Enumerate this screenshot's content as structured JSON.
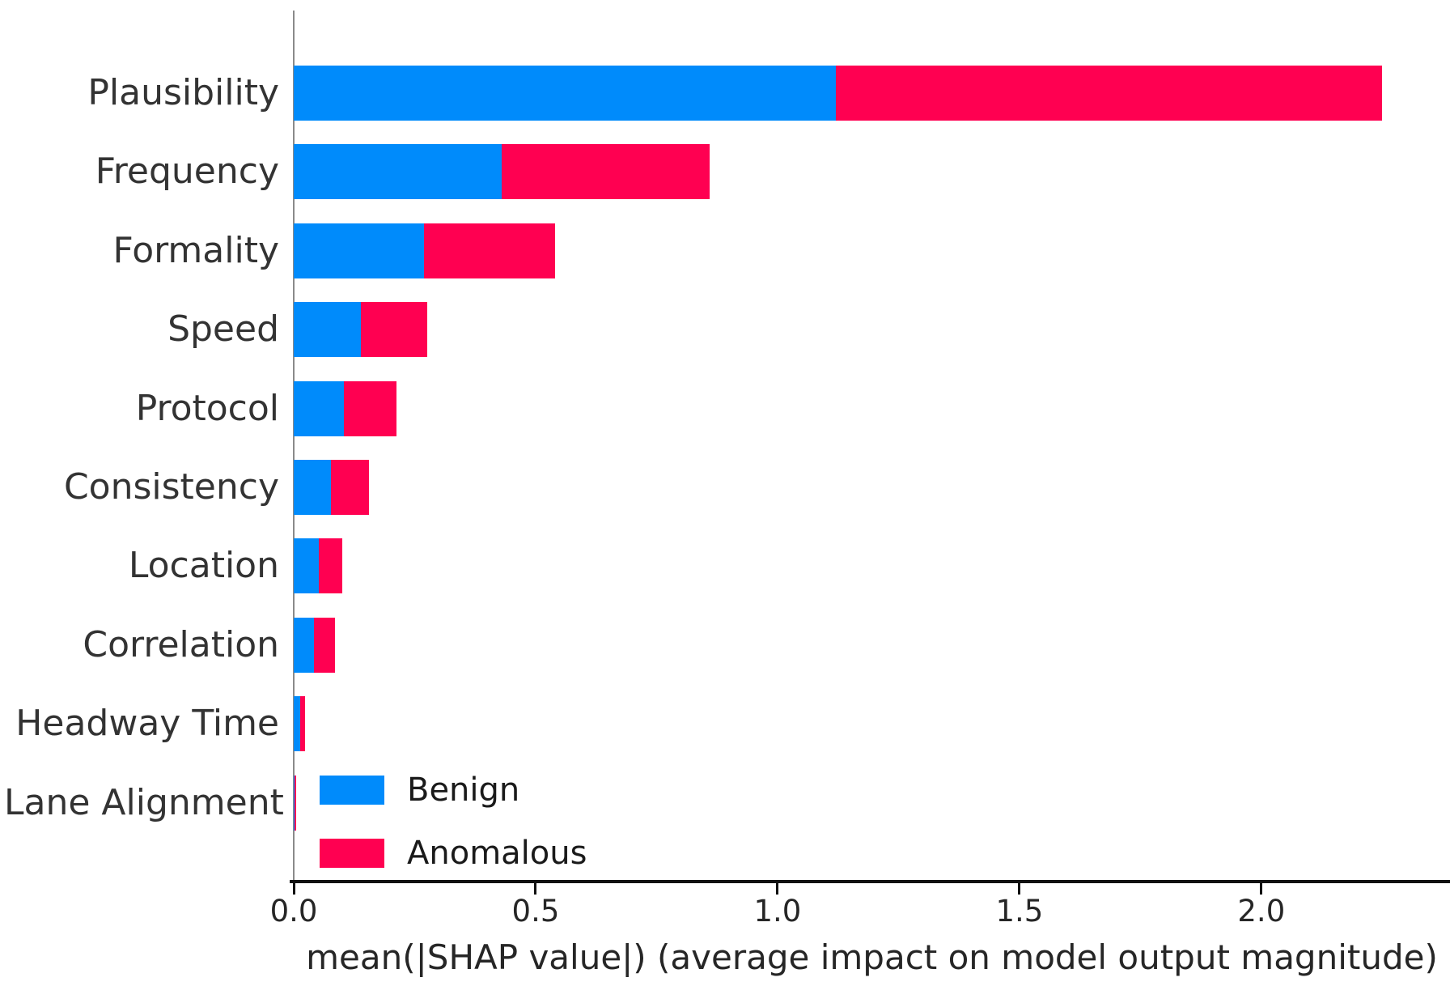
{
  "chart_data": {
    "type": "bar",
    "orientation": "horizontal",
    "stacked": true,
    "title": "",
    "xlabel": "mean(|SHAP value|) (average impact on model output magnitude)",
    "ylabel": "",
    "categories": [
      "Plausibility",
      "Frequency",
      "Formality",
      "Speed",
      "Protocol",
      "Consistency",
      "Location",
      "Correlation",
      "Headway Time",
      "Lane Alignment"
    ],
    "series": [
      {
        "name": "Benign",
        "color": "#008bfb",
        "values": [
          1.12,
          0.43,
          0.27,
          0.139,
          0.104,
          0.077,
          0.052,
          0.041,
          0.013,
          0.002
        ]
      },
      {
        "name": "Anomalous",
        "color": "#ff0051",
        "values": [
          1.13,
          0.43,
          0.27,
          0.137,
          0.108,
          0.079,
          0.049,
          0.044,
          0.011,
          0.003
        ]
      }
    ],
    "xlim": [
      0,
      2.39
    ],
    "xticks": [
      0.0,
      0.5,
      1.0,
      1.5,
      2.0
    ],
    "xtick_labels": [
      "0.0",
      "0.5",
      "1.0",
      "1.5",
      "2.0"
    ],
    "grid": false,
    "legend": {
      "position": "inside-lower-left",
      "entries": [
        "Benign",
        "Anomalous"
      ]
    }
  },
  "colors": {
    "benign": "#008bfb",
    "anomalous": "#ff0051",
    "axis_spine": "#111111",
    "left_spine": "#8a8a8a",
    "text": "#262626"
  }
}
